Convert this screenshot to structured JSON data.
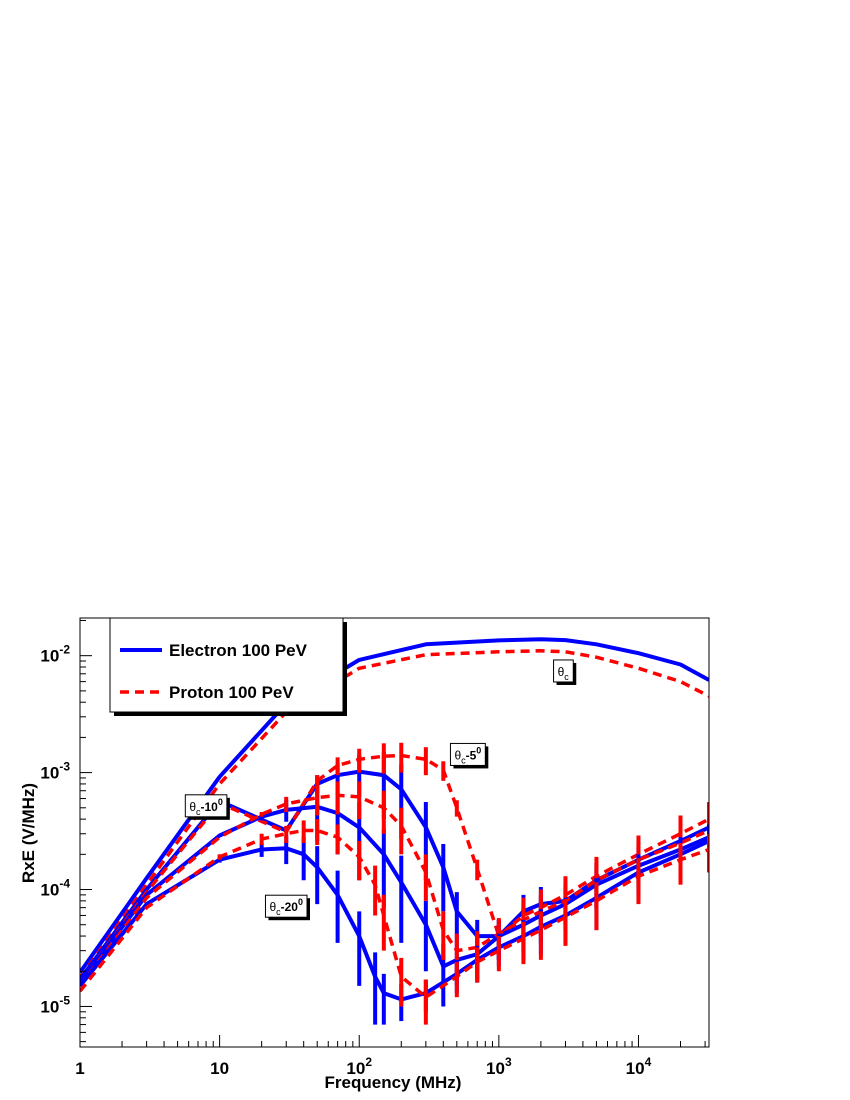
{
  "chart_data": {
    "type": "line",
    "xscale": "log",
    "yscale": "log",
    "xlabel": "Frequency (MHz)",
    "ylabel": "RxE (V/MHz)",
    "xlim": [
      1,
      32000
    ],
    "ylim": [
      4.5e-06,
      0.021
    ],
    "xticks": [
      {
        "value": 1,
        "base": "1",
        "exp": ""
      },
      {
        "value": 10,
        "base": "10",
        "exp": ""
      },
      {
        "value": 100,
        "base": "10",
        "exp": "2"
      },
      {
        "value": 1000,
        "base": "10",
        "exp": "3"
      },
      {
        "value": 10000,
        "base": "10",
        "exp": "4"
      }
    ],
    "yticks": [
      {
        "value": 0.01,
        "base": "10",
        "exp": "-2"
      },
      {
        "value": 0.001,
        "base": "10",
        "exp": "-3"
      },
      {
        "value": 0.0001,
        "base": "10",
        "exp": "-4"
      },
      {
        "value": 1e-05,
        "base": "10",
        "exp": "-5"
      }
    ],
    "legend": {
      "position": "top-left",
      "entries": [
        {
          "label": "Electron 100 PeV",
          "color": "#0000ff",
          "style": "solid"
        },
        {
          "label": "Proton 100 PeV",
          "color": "#ff0000",
          "style": "dashed"
        }
      ]
    },
    "annotations": [
      {
        "sym": "θ",
        "sub": "c",
        "rest": "",
        "sup": "",
        "x": 2900,
        "y": 0.0074
      },
      {
        "sym": "θ",
        "sub": "c",
        "rest": "-5",
        "sup": "0",
        "x": 600,
        "y": 0.00143
      },
      {
        "sym": "θ",
        "sub": "c",
        "rest": "-10",
        "sup": "0",
        "x": 8,
        "y": 0.00052
      },
      {
        "sym": "θ",
        "sub": "c",
        "rest": "-20",
        "sup": "0",
        "x": 30,
        "y": 7.2e-05
      }
    ],
    "series": [
      {
        "name": "Electron 100 PeV",
        "color": "#0000ff",
        "style": "solid",
        "angle": "θc",
        "x": [
          1,
          3,
          10,
          30,
          100,
          300,
          1000,
          2000,
          3000,
          5000,
          10000,
          20000,
          32000
        ],
        "y": [
          1.95e-05,
          0.000125,
          0.00092,
          0.0039,
          0.0092,
          0.0125,
          0.0135,
          0.0138,
          0.0136,
          0.0125,
          0.0105,
          0.0084,
          0.0062
        ],
        "err": []
      },
      {
        "name": "Proton 100 PeV",
        "color": "#ff0000",
        "style": "dashed",
        "angle": "θc",
        "x": [
          1,
          3,
          10,
          30,
          100,
          300,
          1000,
          2000,
          3000,
          5000,
          10000,
          20000,
          32000
        ],
        "y": [
          1.75e-05,
          0.00011,
          0.0008,
          0.0033,
          0.0078,
          0.0102,
          0.0108,
          0.011,
          0.0108,
          0.0097,
          0.0078,
          0.006,
          0.0045
        ],
        "err": []
      },
      {
        "name": "Electron 100 PeV",
        "color": "#0000ff",
        "style": "solid",
        "angle": "θc-5°",
        "x": [
          1,
          3,
          10,
          30,
          50,
          70,
          100,
          150,
          200,
          300,
          400,
          500,
          700,
          1000,
          1500,
          2000,
          3000,
          5000,
          10000,
          20000,
          32000
        ],
        "y": [
          1.7e-05,
          0.0001,
          0.00057,
          0.00032,
          0.0008,
          0.00095,
          0.00102,
          0.00095,
          0.00072,
          0.00034,
          0.000155,
          6.5e-05,
          4e-05,
          4e-05,
          6.5e-05,
          7.5e-05,
          8e-05,
          0.00012,
          0.00018,
          0.00026,
          0.00034
        ],
        "err": [
          0,
          0,
          0,
          0,
          0.00015,
          0.00025,
          0.0004,
          0.00055,
          0.00045,
          0.00022,
          9e-05,
          3e-05,
          1.5e-05,
          1.5e-05,
          2.5e-05,
          3e-05,
          3.5e-05,
          5e-05,
          8e-05,
          0.00011,
          0.00014
        ]
      },
      {
        "name": "Proton 100 PeV",
        "color": "#ff0000",
        "style": "dashed",
        "angle": "θc-5°",
        "x": [
          1,
          3,
          10,
          30,
          50,
          70,
          100,
          150,
          200,
          300,
          400,
          500,
          700,
          1000,
          1500,
          2000,
          3000,
          5000,
          10000,
          20000,
          32000
        ],
        "y": [
          1.6e-05,
          9.5e-05,
          0.00055,
          0.00031,
          0.00085,
          0.00115,
          0.0013,
          0.00138,
          0.0014,
          0.0013,
          0.00105,
          0.0005,
          0.00015,
          4e-05,
          6e-05,
          7e-05,
          9e-05,
          0.00013,
          0.0002,
          0.0003,
          0.0004
        ],
        "err": [
          0,
          0,
          0,
          0,
          0.0001,
          0.0002,
          0.0003,
          0.0004,
          0.0004,
          0.00035,
          0.0002,
          8e-05,
          3e-05,
          1.5e-05,
          2.5e-05,
          3e-05,
          4e-05,
          6e-05,
          9e-05,
          0.00013,
          0.00016
        ]
      },
      {
        "name": "Electron 100 PeV",
        "color": "#0000ff",
        "style": "solid",
        "angle": "θc-10°",
        "x": [
          1,
          3,
          10,
          20,
          30,
          50,
          70,
          100,
          150,
          200,
          300,
          400,
          500,
          700,
          1000,
          1500,
          2000,
          3000,
          5000,
          10000,
          20000,
          32000
        ],
        "y": [
          1.6e-05,
          9e-05,
          0.00029,
          0.00042,
          0.00048,
          0.00051,
          0.00045,
          0.00034,
          0.0002,
          0.000115,
          5e-05,
          2.2e-05,
          2.5e-05,
          2.8e-05,
          4e-05,
          5e-05,
          6e-05,
          7.5e-05,
          0.00011,
          0.00016,
          0.00022,
          0.00028
        ],
        "err": [
          0,
          0,
          0,
          3e-05,
          0.0001,
          0.00025,
          0.00025,
          0.00022,
          0.00013,
          8e-05,
          3e-05,
          1.2e-05,
          1e-05,
          1.2e-05,
          1.5e-05,
          2e-05,
          2.5e-05,
          3e-05,
          4.5e-05,
          7e-05,
          9e-05,
          0.00011
        ]
      },
      {
        "name": "Proton 100 PeV",
        "color": "#ff0000",
        "style": "dashed",
        "angle": "θc-10°",
        "x": [
          1,
          3,
          10,
          20,
          30,
          50,
          70,
          100,
          150,
          200,
          300,
          400,
          500,
          700,
          1000,
          1500,
          2000,
          3000,
          5000,
          10000,
          20000,
          32000
        ],
        "y": [
          1.5e-05,
          8.5e-05,
          0.00028,
          0.00044,
          0.00054,
          0.00061,
          0.00064,
          0.00062,
          0.0005,
          0.00035,
          0.00014,
          4.5e-05,
          3e-05,
          3.2e-05,
          4.2e-05,
          5.5e-05,
          6.5e-05,
          8e-05,
          0.00012,
          0.00018,
          0.00025,
          0.00032
        ],
        "err": [
          0,
          0,
          0,
          2e-05,
          8e-05,
          0.00018,
          0.0002,
          0.00022,
          0.0002,
          0.00015,
          6e-05,
          2e-05,
          1.2e-05,
          1.2e-05,
          1.5e-05,
          2e-05,
          2.5e-05,
          3e-05,
          5e-05,
          7e-05,
          0.0001,
          0.00012
        ]
      },
      {
        "name": "Electron 100 PeV",
        "color": "#0000ff",
        "style": "solid",
        "angle": "θc-20°",
        "x": [
          1,
          3,
          10,
          20,
          30,
          40,
          50,
          70,
          100,
          130,
          150,
          200,
          300,
          500,
          700,
          1000,
          1500,
          2000,
          3000,
          5000,
          10000,
          20000,
          32000
        ],
        "y": [
          1.5e-05,
          7.5e-05,
          0.00018,
          0.00022,
          0.000225,
          0.0002,
          0.000155,
          9e-05,
          4e-05,
          1.8e-05,
          1.3e-05,
          1.15e-05,
          1.3e-05,
          1.9e-05,
          2.5e-05,
          3.2e-05,
          4e-05,
          4.8e-05,
          6e-05,
          8.5e-05,
          0.00014,
          0.0002,
          0.00026
        ],
        "err": [
          0,
          0,
          1e-05,
          3e-05,
          6e-05,
          8e-05,
          8e-05,
          5.5e-05,
          2.5e-05,
          1.1e-05,
          6e-06,
          4e-06,
          4e-06,
          6e-06,
          8e-06,
          1e-05,
          1.5e-05,
          2e-05,
          2.5e-05,
          4e-05,
          6e-05,
          8e-05,
          0.0001
        ]
      },
      {
        "name": "Proton 100 PeV",
        "color": "#ff0000",
        "style": "dashed",
        "angle": "θc-20°",
        "x": [
          1,
          3,
          10,
          20,
          30,
          40,
          50,
          70,
          100,
          130,
          150,
          200,
          300,
          500,
          700,
          1000,
          1500,
          2000,
          3000,
          5000,
          10000,
          20000,
          32000
        ],
        "y": [
          1.35e-05,
          7e-05,
          0.00019,
          0.00027,
          0.0003,
          0.00032,
          0.00032,
          0.00028,
          0.00019,
          0.00011,
          6e-05,
          1.8e-05,
          1.2e-05,
          1.8e-05,
          2.4e-05,
          3e-05,
          3.8e-05,
          4.5e-05,
          5.8e-05,
          8e-05,
          0.00013,
          0.00018,
          0.00022
        ],
        "err": [
          0,
          0,
          1e-05,
          3e-05,
          5e-05,
          7e-05,
          8e-05,
          8e-05,
          7e-05,
          5e-05,
          3e-05,
          8e-06,
          5e-06,
          6e-06,
          8e-06,
          1e-05,
          1.5e-05,
          2e-05,
          2.5e-05,
          3.5e-05,
          5.5e-05,
          7e-05,
          8e-05
        ]
      }
    ]
  }
}
